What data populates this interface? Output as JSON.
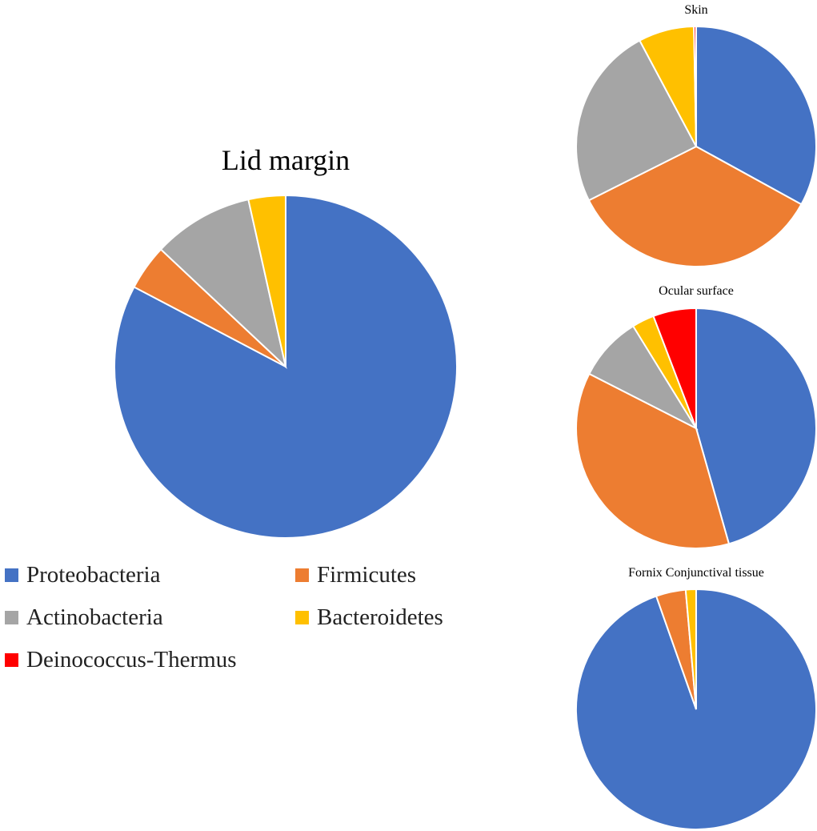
{
  "chart_data": [
    {
      "type": "pie",
      "title": "Lid margin",
      "categories": [
        "Proteobacteria",
        "Firmicutes",
        "Actinobacteria",
        "Bacteroidetes"
      ],
      "values": [
        82.7,
        4.3,
        9.5,
        3.5
      ]
    },
    {
      "type": "pie",
      "title": "Skin",
      "categories": [
        "Proteobacteria",
        "Firmicutes",
        "Actinobacteria",
        "Bacteroidetes",
        "Deinococcus-Thermus"
      ],
      "values": [
        33.0,
        34.6,
        24.6,
        7.5,
        0.3
      ]
    },
    {
      "type": "pie",
      "title": "Ocular surface",
      "categories": [
        "Proteobacteria",
        "Firmicutes",
        "Actinobacteria",
        "Bacteroidetes",
        "Deinococcus-Thermus"
      ],
      "values": [
        45.6,
        36.9,
        8.7,
        3.0,
        5.8
      ]
    },
    {
      "type": "pie",
      "title": "Fornix Conjunctival tissue",
      "categories": [
        "Proteobacteria",
        "Firmicutes",
        "Bacteroidetes"
      ],
      "values": [
        94.6,
        4.0,
        1.4
      ]
    }
  ],
  "legend": {
    "placement": "bottom-left",
    "items": [
      {
        "label": "Proteobacteria",
        "color": "#4472C4"
      },
      {
        "label": "Firmicutes",
        "color": "#ED7D31"
      },
      {
        "label": "Actinobacteria",
        "color": "#A5A5A5"
      },
      {
        "label": "Bacteroidetes",
        "color": "#FFC000"
      },
      {
        "label": "Deinococcus-Thermus",
        "color": "#FF0000"
      }
    ]
  }
}
